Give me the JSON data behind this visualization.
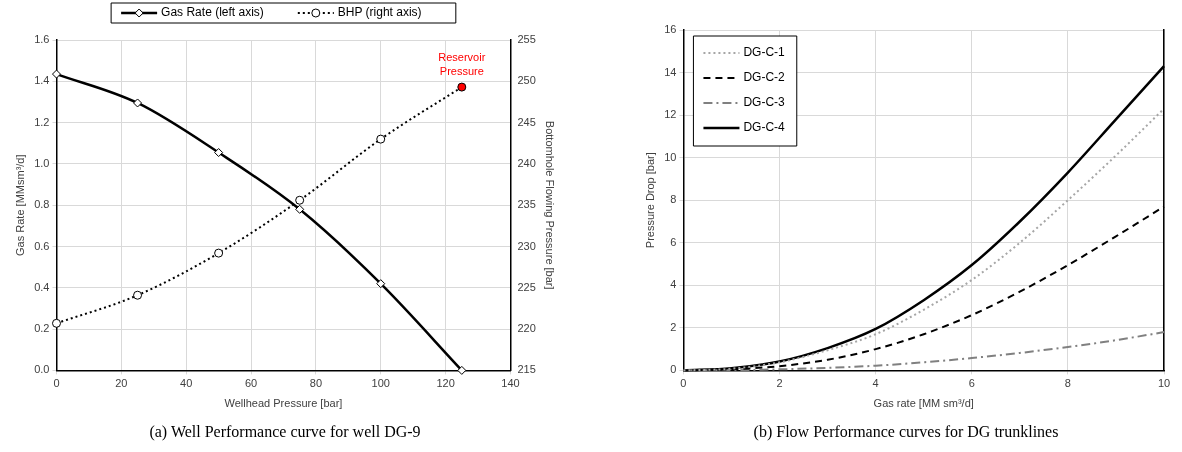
{
  "chart_data": [
    {
      "type": "line",
      "title": "(a) Well Performance curve for well DG-9",
      "xlabel": "Wellhead Pressure [bar]",
      "ylabel": "Gas Rate [MMsm³/d]",
      "y2label": "Bottomhole Flowing Pressure [bar]",
      "xlim": [
        0,
        140
      ],
      "xticks": [
        0,
        20,
        40,
        60,
        80,
        100,
        120,
        140
      ],
      "ylim": [
        0,
        1.6
      ],
      "yticks": [
        {
          "value": 0,
          "label": "0.0"
        },
        0.2,
        0.4,
        0.6,
        0.8,
        {
          "value": 1,
          "label": "1.0"
        },
        1.2,
        1.4,
        1.6
      ],
      "y2lim": [
        215,
        255
      ],
      "y2ticks": [
        215,
        220,
        225,
        230,
        235,
        240,
        245,
        250,
        255
      ],
      "grid": true,
      "legend": "top",
      "annotations": [
        "Reservoir Pressure"
      ],
      "x": [
        0,
        25,
        50,
        75,
        100,
        125
      ],
      "series": [
        {
          "name": "Gas Rate (left axis)",
          "color": "#000000",
          "line_style": "solid",
          "marker": "diamond",
          "values": [
            1.435,
            1.295,
            1.055,
            0.78,
            0.42,
            0.0
          ]
        },
        {
          "name": "BHP (right axis)",
          "color": "#000000",
          "line_style": "dotted",
          "marker": "circle",
          "axis": "y2",
          "colors": [
            "#ffffff",
            "#ffffff",
            "#ffffff",
            "#ffffff",
            "#ffffff",
            "#ff0000"
          ],
          "values": [
            220.7,
            224.1,
            229.2,
            235.6,
            243.0,
            249.3
          ]
        }
      ]
    },
    {
      "type": "line",
      "title": "(b) Flow Performance curves for DG trunklines",
      "xlabel": "Gas rate [MM sm³/d]",
      "ylabel": "Pressure Drop [bar]",
      "xlim": [
        0,
        10
      ],
      "xticks": [
        0,
        2,
        4,
        6,
        8,
        10
      ],
      "ylim": [
        0,
        16
      ],
      "yticks": [
        0,
        2,
        4,
        6,
        8,
        10,
        12,
        14,
        16
      ],
      "grid": true,
      "legend": "top left",
      "marker": "none",
      "x": [
        0,
        1,
        2,
        3,
        4,
        5,
        6,
        7,
        8,
        9,
        10
      ],
      "series": [
        {
          "name": "DG-C-1",
          "color": "#a6a6a6",
          "line_style": "dotted",
          "values": [
            0,
            0.08,
            0.38,
            0.95,
            1.7,
            2.85,
            4.25,
            6.0,
            8.0,
            10.1,
            12.3
          ]
        },
        {
          "name": "DG-C-2",
          "color": "#000000",
          "line_style": "dashed",
          "values": [
            0,
            0.05,
            0.2,
            0.5,
            1.0,
            1.7,
            2.6,
            3.7,
            4.95,
            6.3,
            7.7
          ]
        },
        {
          "name": "DG-C-3",
          "color": "#808080",
          "line_style": "dashdot",
          "values": [
            0,
            0.01,
            0.05,
            0.12,
            0.22,
            0.38,
            0.58,
            0.82,
            1.1,
            1.42,
            1.8
          ]
        },
        {
          "name": "DG-C-4",
          "color": "#000000",
          "line_style": "solid",
          "values": [
            0,
            0.1,
            0.42,
            1.05,
            1.95,
            3.3,
            4.95,
            7.0,
            9.3,
            11.8,
            14.3
          ]
        }
      ]
    }
  ]
}
